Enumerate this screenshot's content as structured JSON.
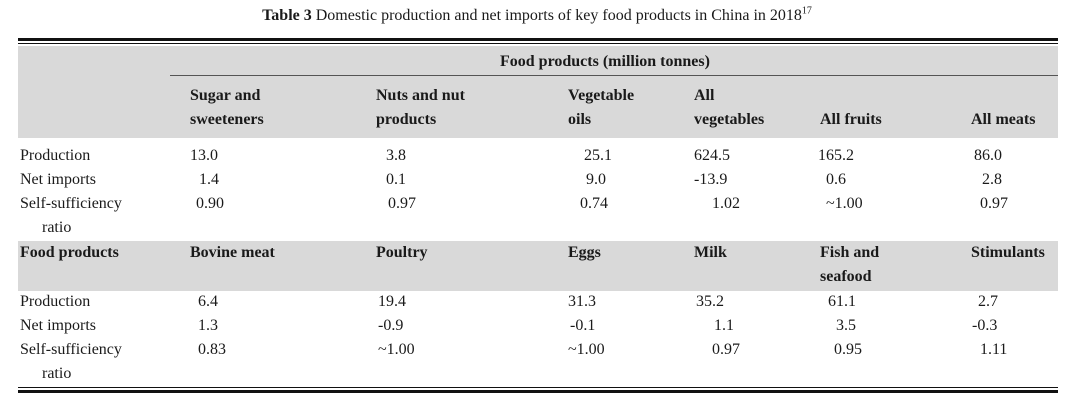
{
  "caption": {
    "label": "Table 3",
    "text": "Domestic production and net imports of key food products in China in 2018",
    "ref": "17"
  },
  "table1": {
    "group_header": "Food products (million tonnes)",
    "columns": [
      [
        "Sugar and",
        "sweeteners"
      ],
      [
        "Nuts and nut",
        "products"
      ],
      [
        "Vegetable",
        "oils"
      ],
      [
        "All",
        "vegetables"
      ],
      [
        "All fruits"
      ],
      [
        "All meats"
      ]
    ],
    "rows": [
      {
        "label": [
          "Production"
        ],
        "values": [
          "13.0",
          "3.8",
          "25.1",
          "624.5",
          "165.2",
          "86.0"
        ]
      },
      {
        "label": [
          "Net imports"
        ],
        "values": [
          "1.4",
          "0.1",
          "9.0",
          "-13.9",
          "0.6",
          "2.8"
        ]
      },
      {
        "label": [
          "Self-sufficiency",
          "ratio"
        ],
        "values": [
          "0.90",
          "0.97",
          "0.74",
          "1.02",
          "~1.00",
          "0.97"
        ]
      }
    ]
  },
  "table2": {
    "header_label": "Food products",
    "columns": [
      [
        "Bovine meat"
      ],
      [
        "Poultry"
      ],
      [
        "Eggs"
      ],
      [
        "Milk"
      ],
      [
        "Fish and",
        "seafood"
      ],
      [
        "Stimulants"
      ]
    ],
    "rows": [
      {
        "label": [
          "Production"
        ],
        "values": [
          "6.4",
          "19.4",
          "31.3",
          "35.2",
          "61.1",
          "2.7"
        ]
      },
      {
        "label": [
          "Net imports"
        ],
        "values": [
          "1.3",
          "-0.9",
          "-0.1",
          "1.1",
          "3.5",
          "-0.3"
        ]
      },
      {
        "label": [
          "Self-sufficiency",
          "ratio"
        ],
        "values": [
          "0.83",
          "~1.00",
          "~1.00",
          "0.97",
          "0.95",
          "1.11"
        ]
      }
    ]
  }
}
